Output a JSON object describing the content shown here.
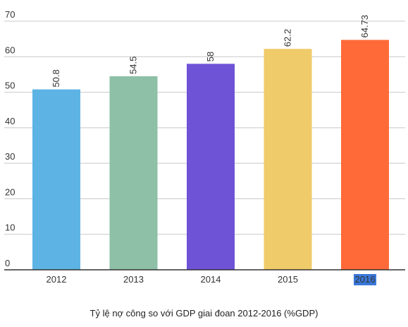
{
  "chart_data": {
    "type": "bar",
    "caption": "Tỷ lệ nợ công so với GDP giai đoan 2012-2016 (%GDP)",
    "categories": [
      "2012",
      "2013",
      "2014",
      "2015",
      "2016"
    ],
    "values": [
      50.8,
      54.5,
      58,
      62.2,
      64.73
    ],
    "data_labels": [
      "50.8",
      "54.5",
      "58",
      "62.2",
      "64.73"
    ],
    "bar_colors": [
      "#5db4e4",
      "#8dc0a7",
      "#6e53d7",
      "#efcb6a",
      "#ff6a38"
    ],
    "ylim": [
      0,
      70
    ],
    "yticks": [
      "0",
      "10",
      "20",
      "30",
      "40",
      "50",
      "60",
      "70"
    ],
    "ytick_values": [
      0,
      10,
      20,
      30,
      40,
      50,
      60,
      70
    ],
    "grid": true,
    "highlighted_category": "2016",
    "highlight_color": "#3a78d8"
  }
}
